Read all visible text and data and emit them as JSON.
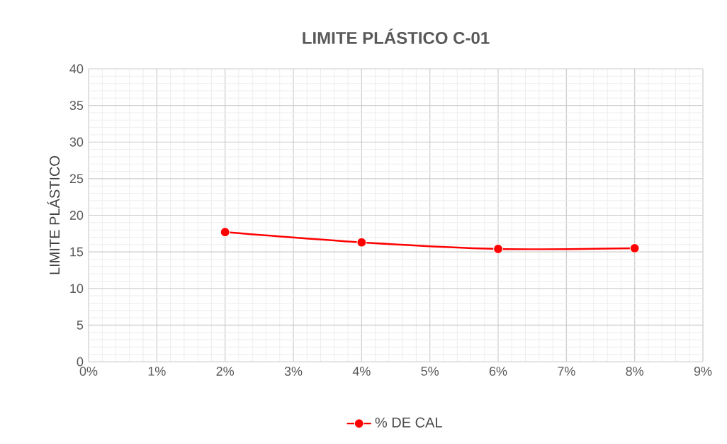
{
  "chart_data": {
    "type": "line",
    "title": "LIMITE PLÁSTICO C-01",
    "ylabel": "LIMITE PLÁSTICO",
    "x": [
      2,
      4,
      6,
      8
    ],
    "series": [
      {
        "name": "%  DE CAL",
        "color": "#ff0000",
        "values": [
          17.7,
          16.3,
          15.4,
          15.5
        ]
      }
    ],
    "xlim": [
      0,
      9
    ],
    "xticks": [
      {
        "value": 0,
        "label": "0%"
      },
      {
        "value": 1,
        "label": "1%"
      },
      {
        "value": 2,
        "label": "2%"
      },
      {
        "value": 3,
        "label": "3%"
      },
      {
        "value": 4,
        "label": "4%"
      },
      {
        "value": 5,
        "label": "5%"
      },
      {
        "value": 6,
        "label": "6%"
      },
      {
        "value": 7,
        "label": "7%"
      },
      {
        "value": 8,
        "label": "8%"
      },
      {
        "value": 9,
        "label": "9%"
      }
    ],
    "ylim": [
      0,
      40
    ],
    "yticks": [
      0,
      5,
      10,
      15,
      20,
      25,
      30,
      35,
      40
    ],
    "grid": true,
    "legend": "bottom",
    "marker": "circle",
    "line_style": "solid"
  }
}
